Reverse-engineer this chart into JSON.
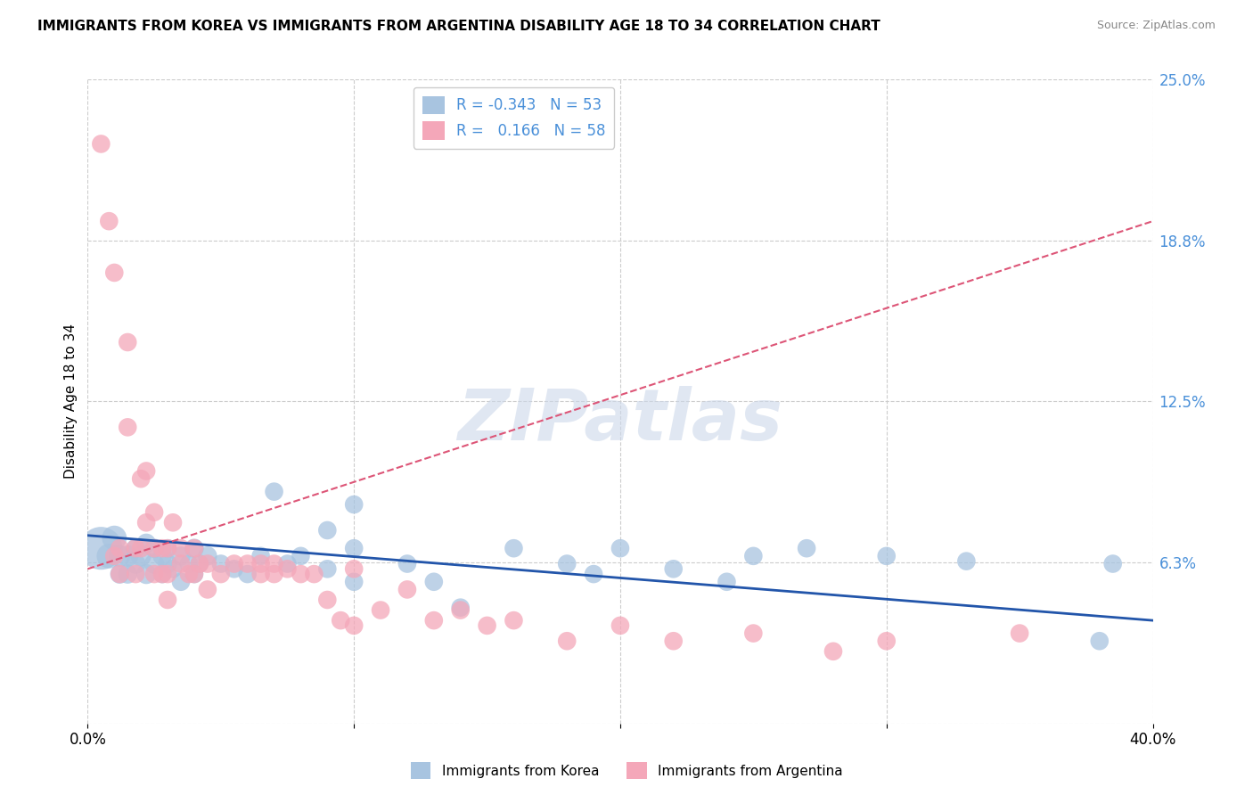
{
  "title": "IMMIGRANTS FROM KOREA VS IMMIGRANTS FROM ARGENTINA DISABILITY AGE 18 TO 34 CORRELATION CHART",
  "source": "Source: ZipAtlas.com",
  "ylabel": "Disability Age 18 to 34",
  "xlim": [
    0.0,
    0.4
  ],
  "ylim": [
    0.0,
    0.25
  ],
  "yticks": [
    0.0,
    0.0625,
    0.125,
    0.1875,
    0.25
  ],
  "ytick_labels": [
    "",
    "6.3%",
    "12.5%",
    "18.8%",
    "25.0%"
  ],
  "xticks": [
    0.0,
    0.1,
    0.2,
    0.3,
    0.4
  ],
  "xtick_labels": [
    "0.0%",
    "",
    "",
    "",
    "40.0%"
  ],
  "korea_R": -0.343,
  "korea_N": 53,
  "argentina_R": 0.166,
  "argentina_N": 58,
  "korea_color": "#a8c4e0",
  "argentina_color": "#f4a7b9",
  "korea_line_color": "#2255aa",
  "argentina_line_color": "#dd5577",
  "background_color": "#ffffff",
  "grid_color": "#cccccc",
  "watermark": "ZIPatlas",
  "watermark_color": "#ccd8ea",
  "title_fontsize": 11,
  "legend_fontsize": 11,
  "korea_trend": [
    0.0,
    0.073,
    0.4,
    0.04
  ],
  "argentina_trend": [
    0.0,
    0.06,
    0.4,
    0.195
  ],
  "korea_scatter_x": [
    0.005,
    0.008,
    0.01,
    0.012,
    0.012,
    0.015,
    0.015,
    0.018,
    0.018,
    0.02,
    0.022,
    0.022,
    0.025,
    0.025,
    0.028,
    0.028,
    0.03,
    0.03,
    0.032,
    0.035,
    0.035,
    0.038,
    0.04,
    0.04,
    0.042,
    0.045,
    0.05,
    0.055,
    0.06,
    0.065,
    0.07,
    0.075,
    0.08,
    0.09,
    0.09,
    0.1,
    0.1,
    0.1,
    0.12,
    0.13,
    0.14,
    0.16,
    0.18,
    0.19,
    0.2,
    0.22,
    0.24,
    0.25,
    0.27,
    0.3,
    0.33,
    0.38,
    0.385
  ],
  "korea_scatter_y": [
    0.068,
    0.065,
    0.072,
    0.065,
    0.058,
    0.065,
    0.058,
    0.062,
    0.068,
    0.065,
    0.058,
    0.07,
    0.062,
    0.068,
    0.065,
    0.058,
    0.062,
    0.068,
    0.06,
    0.065,
    0.055,
    0.062,
    0.068,
    0.058,
    0.062,
    0.065,
    0.062,
    0.06,
    0.058,
    0.065,
    0.09,
    0.062,
    0.065,
    0.075,
    0.06,
    0.085,
    0.068,
    0.055,
    0.062,
    0.055,
    0.045,
    0.068,
    0.062,
    0.058,
    0.068,
    0.06,
    0.055,
    0.065,
    0.068,
    0.065,
    0.063,
    0.032,
    0.062
  ],
  "korea_scatter_size": [
    600,
    200,
    200,
    150,
    120,
    150,
    120,
    130,
    120,
    140,
    130,
    120,
    130,
    120,
    120,
    110,
    120,
    110,
    110,
    120,
    110,
    110,
    120,
    110,
    110,
    120,
    110,
    110,
    110,
    110,
    110,
    110,
    110,
    110,
    110,
    110,
    110,
    110,
    110,
    110,
    110,
    110,
    110,
    110,
    110,
    110,
    110,
    110,
    110,
    110,
    110,
    110,
    110
  ],
  "argentina_scatter_x": [
    0.005,
    0.008,
    0.01,
    0.01,
    0.012,
    0.012,
    0.015,
    0.015,
    0.018,
    0.018,
    0.02,
    0.02,
    0.022,
    0.022,
    0.025,
    0.025,
    0.025,
    0.028,
    0.028,
    0.03,
    0.03,
    0.03,
    0.032,
    0.035,
    0.035,
    0.038,
    0.04,
    0.04,
    0.042,
    0.045,
    0.045,
    0.05,
    0.055,
    0.06,
    0.065,
    0.065,
    0.07,
    0.07,
    0.075,
    0.08,
    0.085,
    0.09,
    0.095,
    0.1,
    0.1,
    0.11,
    0.12,
    0.13,
    0.14,
    0.15,
    0.16,
    0.18,
    0.2,
    0.22,
    0.25,
    0.28,
    0.3,
    0.35
  ],
  "argentina_scatter_y": [
    0.225,
    0.195,
    0.175,
    0.065,
    0.068,
    0.058,
    0.148,
    0.115,
    0.068,
    0.058,
    0.068,
    0.095,
    0.098,
    0.078,
    0.068,
    0.082,
    0.058,
    0.068,
    0.058,
    0.068,
    0.058,
    0.048,
    0.078,
    0.068,
    0.062,
    0.058,
    0.068,
    0.058,
    0.062,
    0.062,
    0.052,
    0.058,
    0.062,
    0.062,
    0.058,
    0.062,
    0.058,
    0.062,
    0.06,
    0.058,
    0.058,
    0.048,
    0.04,
    0.06,
    0.038,
    0.044,
    0.052,
    0.04,
    0.044,
    0.038,
    0.04,
    0.032,
    0.038,
    0.032,
    0.035,
    0.028,
    0.032,
    0.035
  ],
  "argentina_scatter_size": [
    110,
    110,
    110,
    110,
    110,
    110,
    110,
    110,
    110,
    110,
    110,
    110,
    110,
    110,
    110,
    110,
    110,
    110,
    110,
    110,
    110,
    110,
    110,
    110,
    110,
    110,
    110,
    110,
    110,
    110,
    110,
    110,
    110,
    110,
    110,
    110,
    110,
    110,
    110,
    110,
    110,
    110,
    110,
    110,
    110,
    110,
    110,
    110,
    110,
    110,
    110,
    110,
    110,
    110,
    110,
    110,
    110,
    110
  ]
}
